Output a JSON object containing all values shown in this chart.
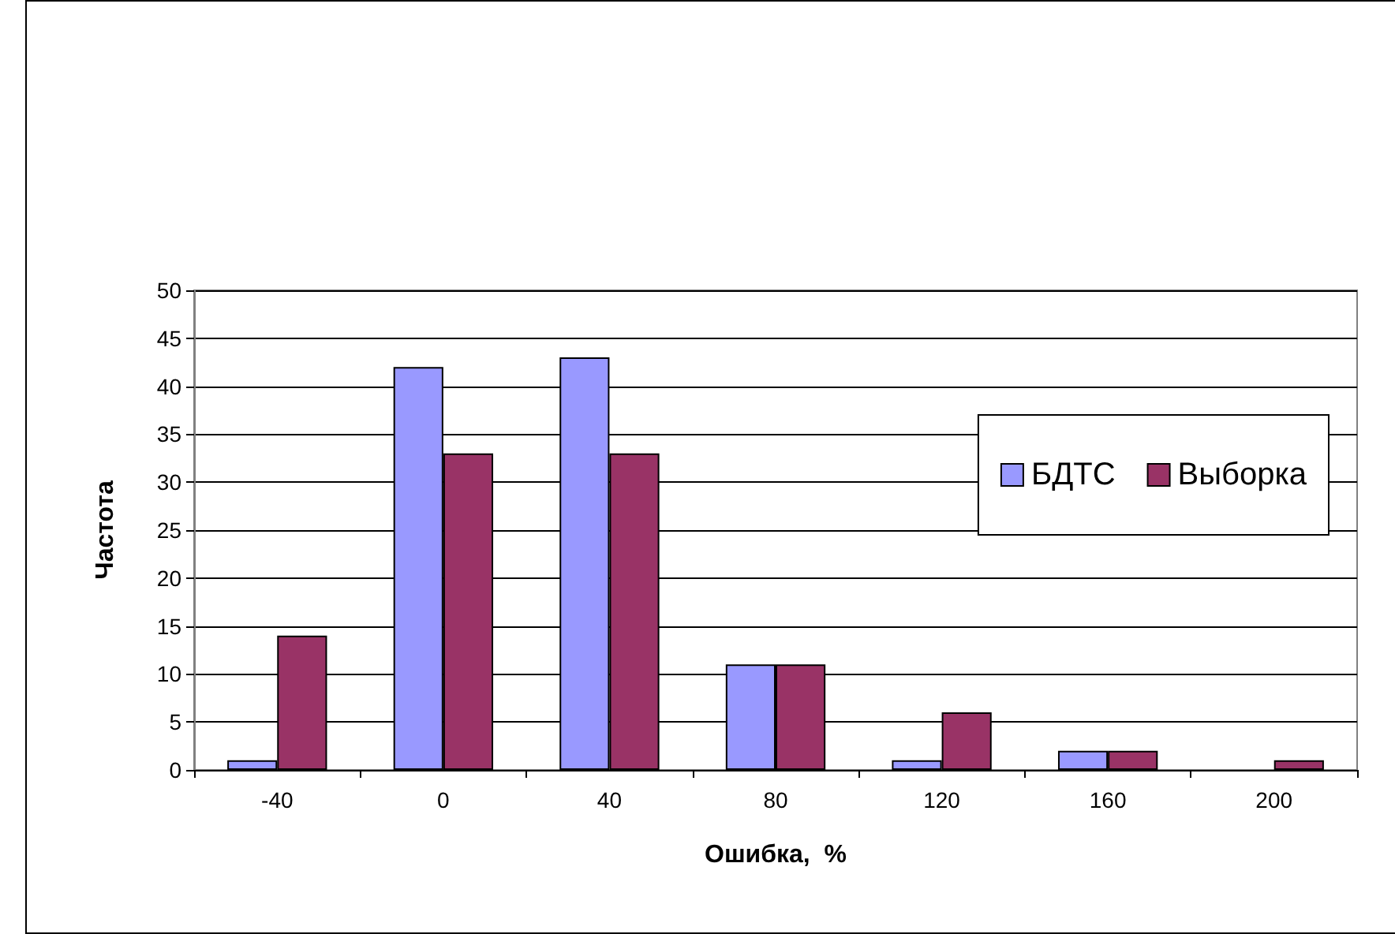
{
  "chart_data": {
    "type": "bar",
    "xlabel": "Ошибка,  %",
    "ylabel": "Частота",
    "categories": [
      "-40",
      "0",
      "40",
      "80",
      "120",
      "160",
      "200"
    ],
    "series": [
      {
        "name": "БДТС",
        "color": "#9999ff",
        "values": [
          1,
          42,
          43,
          11,
          1,
          2,
          0
        ]
      },
      {
        "name": "Выборка",
        "color": "#993366",
        "values": [
          14,
          33,
          33,
          11,
          6,
          2,
          1
        ]
      }
    ],
    "ylim": [
      0,
      50
    ],
    "yticks": [
      0,
      5,
      10,
      15,
      20,
      25,
      30,
      35,
      40,
      45,
      50
    ],
    "grid": "y",
    "legend": "right"
  }
}
